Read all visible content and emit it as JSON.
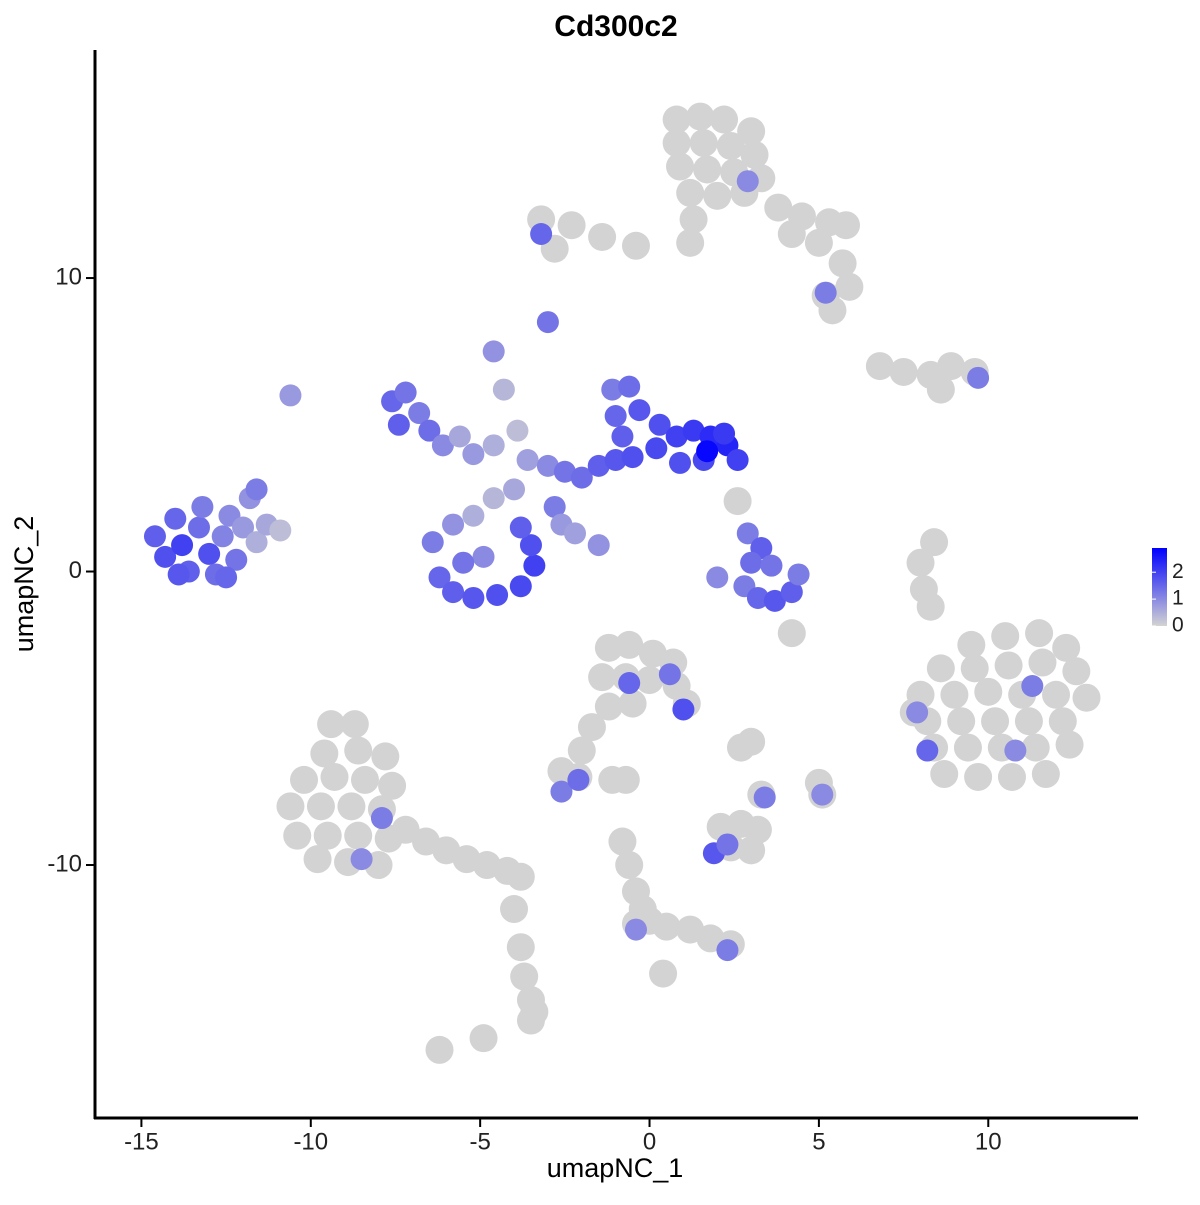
{
  "chart_data": {
    "type": "scatter",
    "title": "Cd300c2",
    "x_label": "umapNC_1",
    "y_label": "umapNC_2",
    "xlim": [
      -16.37,
      14.42
    ],
    "ylim": [
      -18.62,
      17.77
    ],
    "xticks": [
      -15,
      -10,
      -5,
      0,
      5,
      10
    ],
    "yticks": [
      -10,
      0,
      10
    ],
    "color_low": "#d3d3d3",
    "color_high": "#0000ff",
    "color_lim": [
      0,
      2.9
    ],
    "color_ticks": [
      0,
      1,
      2
    ],
    "x": [
      0.8,
      1.5,
      2.2,
      3.0,
      0.8,
      1.6,
      2.4,
      3.1,
      0.9,
      1.7,
      2.5,
      3.3,
      1.2,
      2.0,
      2.8,
      1.3,
      1.2,
      3.8,
      4.5,
      5.3,
      5.8,
      4.2,
      5.0,
      5.7,
      5.9,
      5.2,
      5.4,
      -0.4,
      -1.4,
      -2.3,
      -3.2,
      -2.8,
      6.8,
      7.5,
      8.3,
      8.9,
      9.6,
      8.6,
      9.5,
      10.5,
      11.5,
      12.3,
      8.6,
      9.6,
      10.6,
      11.6,
      12.6,
      8.0,
      9.0,
      10.0,
      11.0,
      12.0,
      12.9,
      8.2,
      9.2,
      10.2,
      11.2,
      12.2,
      8.4,
      9.4,
      10.4,
      11.4,
      12.4,
      8.7,
      9.7,
      10.7,
      11.7,
      7.8,
      8.4,
      8.0,
      8.1,
      8.3,
      -9.4,
      -8.7,
      -9.6,
      -8.6,
      -7.8,
      -10.2,
      -9.3,
      -8.4,
      -7.6,
      -10.6,
      -9.7,
      -8.8,
      -7.9,
      -10.4,
      -9.5,
      -8.6,
      -7.7,
      -9.8,
      -8.9,
      -8.0,
      -7.2,
      -6.6,
      -6.0,
      -5.4,
      -4.8,
      -4.2,
      -3.8,
      -4.0,
      -3.8,
      -3.7,
      -3.5,
      -3.4,
      -3.5,
      -6.2,
      -4.9,
      -1.2,
      -0.6,
      0.1,
      0.7,
      -1.4,
      -0.7,
      0.0,
      0.8,
      1.1,
      -1.2,
      -0.5,
      -1.7,
      -2.0,
      -2.6,
      -2.1,
      -1.1,
      -0.7,
      2.1,
      2.7,
      3.2,
      2.4,
      3.0,
      3.3,
      2.7,
      3.0,
      5.0,
      5.1,
      -0.8,
      -0.6,
      -0.4,
      -0.2,
      0.0,
      0.5,
      1.2,
      1.8,
      2.4,
      -0.4,
      0.4,
      4.2,
      2.6,
      2.9,
      5.2,
      -3.2,
      -3.0,
      9.7,
      -14.6,
      -14.3,
      -14.0,
      -13.8,
      -13.6,
      -13.3,
      -13.2,
      -13.0,
      -12.8,
      -12.6,
      -12.4,
      -12.2,
      -12.0,
      -11.8,
      -11.6,
      -11.3,
      -10.9,
      -12.5,
      -13.9,
      -11.6,
      -10.6,
      -7.6,
      -7.2,
      -7.4,
      -6.8,
      -6.5,
      -6.1,
      -5.6,
      -5.2,
      -4.6,
      -4.6,
      -4.3,
      -3.9,
      -3.6,
      -3.0,
      -2.5,
      -2.0,
      -1.5,
      -1.0,
      -0.5,
      -1.1,
      -0.6,
      -1.0,
      -0.3,
      0.3,
      0.8,
      1.3,
      1.8,
      2.3,
      2.6,
      1.6,
      0.9,
      0.2,
      -0.8,
      1.7,
      2.2,
      -6.4,
      -6.2,
      -5.8,
      -5.2,
      -4.5,
      -3.8,
      -3.4,
      -3.5,
      -3.8,
      -5.8,
      -5.2,
      -4.6,
      -4.0,
      -4.9,
      -5.5,
      -2.8,
      -2.6,
      -1.5,
      -2.2,
      2.9,
      3.3,
      3.0,
      3.6,
      2.8,
      3.2,
      3.7,
      4.2,
      4.4,
      2.0,
      8.2,
      11.3,
      7.9,
      10.8,
      -7.9,
      -8.5,
      -0.6,
      0.6,
      1.0,
      -2.6,
      -2.1,
      1.9,
      2.3,
      5.1,
      3.4,
      -0.4,
      2.3
    ],
    "values": [
      15.4,
      15.5,
      15.4,
      15.0,
      14.6,
      14.6,
      14.5,
      14.2,
      13.8,
      13.7,
      13.6,
      13.4,
      12.9,
      12.8,
      12.9,
      12.0,
      11.2,
      12.4,
      12.1,
      11.9,
      11.8,
      11.5,
      11.2,
      10.5,
      9.7,
      9.4,
      8.9,
      11.1,
      11.4,
      11.8,
      12.0,
      11.0,
      7.0,
      6.8,
      6.7,
      7.0,
      6.8,
      6.2,
      -2.5,
      -2.2,
      -2.1,
      -2.6,
      -3.3,
      -3.3,
      -3.2,
      -3.1,
      -3.4,
      -4.2,
      -4.2,
      -4.1,
      -4.2,
      -4.2,
      -4.3,
      -5.1,
      -5.1,
      -5.1,
      -5.1,
      -5.1,
      -6.0,
      -6.0,
      -6.0,
      -6.0,
      -5.9,
      -6.9,
      -7.0,
      -7.0,
      -6.9,
      -4.8,
      1.0,
      0.3,
      -0.6,
      -1.2,
      -5.2,
      -5.2,
      -6.2,
      -6.1,
      -6.3,
      -7.1,
      -7.0,
      -7.1,
      -7.3,
      -8.0,
      -8.0,
      -8.0,
      -8.1,
      -9.0,
      -9.0,
      -9.0,
      -9.1,
      -9.8,
      -9.9,
      -10.0,
      -8.8,
      -9.2,
      -9.5,
      -9.8,
      -10.0,
      -10.2,
      -10.4,
      -11.5,
      -12.8,
      -13.8,
      -14.6,
      -15.0,
      -15.3,
      -16.3,
      -15.9,
      -2.6,
      -2.5,
      -2.8,
      -3.1,
      -3.6,
      -3.6,
      -3.7,
      -3.9,
      -4.5,
      -4.6,
      -4.5,
      -5.3,
      -6.1,
      -6.8,
      -7.0,
      -7.1,
      -7.1,
      -8.7,
      -8.6,
      -8.8,
      -9.4,
      -9.5,
      -7.6,
      -6.0,
      -5.8,
      -7.2,
      -7.6,
      -9.2,
      -10.0,
      -10.9,
      -11.5,
      -11.9,
      -12.1,
      -12.2,
      -12.5,
      -12.7,
      -12.0,
      -13.7,
      -2.1,
      2.4,
      13.3,
      9.5,
      11.5,
      8.5,
      6.6,
      1.2,
      0.5,
      1.8,
      0.9,
      0.0,
      1.5,
      2.2,
      0.6,
      -0.1,
      1.2,
      1.9,
      0.4,
      1.5,
      2.5,
      1.0,
      1.6,
      1.4,
      -0.2,
      -0.1,
      2.8,
      6.0,
      5.8,
      6.1,
      5.0,
      5.4,
      4.8,
      4.3,
      4.6,
      4.0,
      4.3,
      7.5,
      6.2,
      4.8,
      3.8,
      3.6,
      3.4,
      3.2,
      3.6,
      3.8,
      3.9,
      6.2,
      6.3,
      5.3,
      5.5,
      5.0,
      4.6,
      4.8,
      4.6,
      4.3,
      3.8,
      3.8,
      3.7,
      4.2,
      4.6,
      4.1,
      4.7,
      1.0,
      -0.2,
      -0.7,
      -0.9,
      -0.8,
      -0.5,
      0.2,
      0.9,
      1.5,
      1.6,
      1.9,
      2.5,
      2.8,
      0.5,
      0.3,
      2.2,
      1.6,
      0.9,
      1.3,
      1.3,
      0.8,
      0.3,
      0.2,
      -0.5,
      -0.9,
      -1.0,
      -0.7,
      -0.1,
      -0.2,
      -6.1,
      -3.9,
      -4.8,
      -6.1,
      -8.4,
      -9.8,
      -3.8,
      -3.5,
      -4.7,
      -7.5,
      -7.1,
      -9.6,
      -9.3,
      -7.6,
      -7.7,
      -12.2,
      -12.9
    ],
    "color_values": [
      0,
      0,
      0,
      0,
      0,
      0,
      0,
      0,
      0,
      0,
      0,
      0,
      0,
      0,
      0,
      0,
      0,
      0,
      0,
      0,
      0,
      0,
      0,
      0,
      0,
      0,
      0,
      0,
      0,
      0,
      0,
      0,
      0,
      0,
      0,
      0,
      0,
      0,
      0,
      0,
      0,
      0,
      0,
      0,
      0,
      0,
      0,
      0,
      0,
      0,
      0,
      0,
      0,
      0,
      0,
      0,
      0,
      0,
      0,
      0,
      0,
      0,
      0,
      0,
      0,
      0,
      0,
      0,
      0,
      0,
      0,
      0,
      0,
      0,
      0,
      0,
      0,
      0,
      0,
      0,
      0,
      0,
      0,
      0,
      0,
      0,
      0,
      0,
      0,
      0,
      0,
      0,
      0,
      0,
      0,
      0,
      0,
      0,
      0,
      0,
      0,
      0,
      0,
      0,
      0,
      0,
      0,
      0,
      0,
      0,
      0,
      0,
      0,
      0,
      0,
      0,
      0,
      0,
      0,
      0,
      0,
      0,
      0,
      0,
      0,
      0,
      0,
      0,
      0,
      0,
      0,
      0,
      0,
      0,
      0,
      0,
      0,
      0,
      0,
      0,
      0,
      0,
      0,
      0,
      0,
      0,
      0,
      1.0,
      1.2,
      1.5,
      1.3,
      1.2,
      1.6,
      1.8,
      1.5,
      2.0,
      1.6,
      1.4,
      1.2,
      1.8,
      1.4,
      1.1,
      1.0,
      1.3,
      0.8,
      0.9,
      0.5,
      0.6,
      0.3,
      1.5,
      1.7,
      1.2,
      0.8,
      1.5,
      1.3,
      1.6,
      1.2,
      1.4,
      1.0,
      0.6,
      0.8,
      0.5,
      0.9,
      0.4,
      0.3,
      0.7,
      1.0,
      1.3,
      1.4,
      1.6,
      1.7,
      1.8,
      1.2,
      1.4,
      1.5,
      1.7,
      1.8,
      2.0,
      2.1,
      2.3,
      2.4,
      2.0,
      1.9,
      1.8,
      1.9,
      1.6,
      2.8,
      2.1,
      1.2,
      1.5,
      1.6,
      1.7,
      1.8,
      1.9,
      2.0,
      1.8,
      1.6,
      0.9,
      0.5,
      0.4,
      0.6,
      1.0,
      1.3,
      1.2,
      0.8,
      0.9,
      0.7,
      1.2,
      1.6,
      1.4,
      1.3,
      1.2,
      1.5,
      1.7,
      1.6,
      1.2,
      1.0,
      1.5,
      1.2,
      1.0,
      1.0,
      1.2,
      1.0,
      1.5,
      1.3,
      1.8,
      1.2,
      1.4,
      1.7,
      1.3,
      1.0,
      1.2,
      1.0,
      1.2
    ]
  }
}
